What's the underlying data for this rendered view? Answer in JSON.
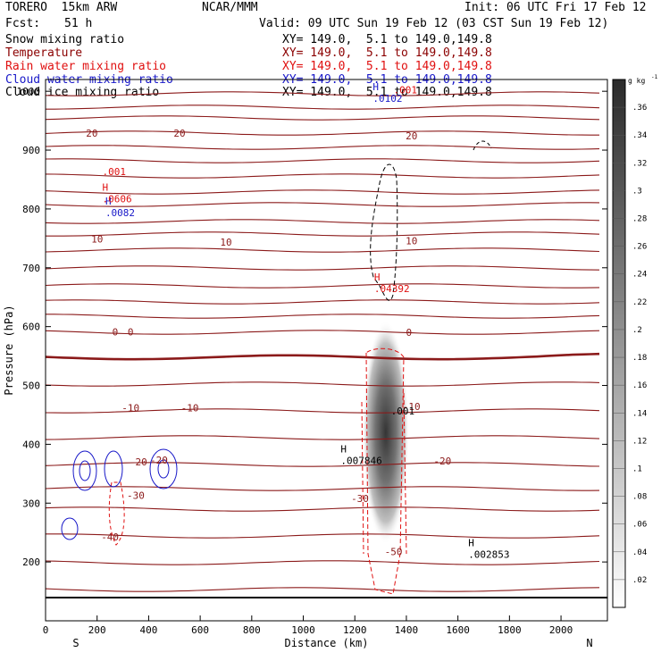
{
  "header": {
    "model": "TORERO  15km ARW",
    "org": "NCAR/MMM",
    "init": "Init: 06 UTC Fri 17 Feb 12",
    "fcst_label": "Fcst:",
    "fcst_value": "51 h",
    "valid": "Valid: 09 UTC Sun 19 Feb 12 (03 CST Sun 19 Feb 12)"
  },
  "legend": [
    {
      "name": "Snow mixing ratio",
      "xy": "XY= 149.0,  5.1 to 149.0,149.8",
      "color": "#000000"
    },
    {
      "name": "Temperature",
      "xy": "XY= 149.0,  5.1 to 149.0,149.8",
      "color": "#8b0000"
    },
    {
      "name": "Rain water mixing ratio",
      "xy": "XY= 149.0,  5.1 to 149.0,149.8",
      "color": "#e01010"
    },
    {
      "name": "Cloud water mixing ratio",
      "xy": "XY= 149.0,  5.1 to 149.0,149.8",
      "color": "#1818c8"
    },
    {
      "name": "Cloud ice mixing ratio",
      "xy": "XY= 149.0,  5.1 to 149.0,149.8",
      "color": "#000000"
    }
  ],
  "chart_data": {
    "type": "cross-section contour",
    "x_range": [
      0,
      2180
    ],
    "y_range": [
      1020,
      100
    ],
    "xlabel": "Distance (km)",
    "ylabel": "Pressure (hPa)",
    "x_ticks": [
      0,
      200,
      400,
      600,
      800,
      1000,
      1200,
      1400,
      1600,
      1800,
      2000
    ],
    "y_ticks": [
      200,
      300,
      400,
      500,
      600,
      700,
      800,
      900,
      1000
    ],
    "x_left_label": "S",
    "x_right_label": "N",
    "colorbar": {
      "unit": "g kg",
      "unit_exp": "-1",
      "ticks": [
        ".02",
        ".04",
        ".06",
        ".08",
        ".1",
        ".12",
        ".14",
        ".16",
        ".18",
        ".2",
        ".22",
        ".24",
        ".26",
        ".28",
        ".3",
        ".32",
        ".34",
        ".36"
      ]
    },
    "temperature_contours": [
      {
        "label": "-50",
        "label_x": 1350,
        "label_p": 218,
        "p": 218
      },
      {
        "label": "-40",
        "label_x": 250,
        "label_p": 243,
        "p": 243
      },
      {
        "label": "-30",
        "label_x": 350,
        "label_p": 313,
        "p": 313
      },
      {
        "label": "-30",
        "label_x": 1220,
        "label_p": 308,
        "p": 313
      },
      {
        "label": "-20",
        "label_x": 360,
        "label_p": 370,
        "p": 370
      },
      {
        "label": "-20",
        "label_x": 440,
        "label_p": 373,
        "p": 370
      },
      {
        "label": "-20",
        "label_x": 1540,
        "label_p": 372,
        "p": 370
      },
      {
        "label": "-10",
        "label_x": 330,
        "label_p": 462,
        "p": 462
      },
      {
        "label": "-10",
        "label_x": 560,
        "label_p": 462,
        "p": 462
      },
      {
        "label": "-10",
        "label_x": 1420,
        "label_p": 464,
        "p": 462
      },
      {
        "label": "0",
        "label_x": 270,
        "label_p": 591,
        "p": 591
      },
      {
        "label": "0",
        "label_x": 330,
        "label_p": 591,
        "p": 591
      },
      {
        "label": "0",
        "label_x": 1410,
        "label_p": 590,
        "p": 591
      },
      {
        "label": "10",
        "label_x": 200,
        "label_p": 749,
        "p": 749
      },
      {
        "label": "10",
        "label_x": 1420,
        "label_p": 746,
        "p": 749
      },
      {
        "label": "10",
        "label_x": 700,
        "label_p": 744,
        "p": 749
      },
      {
        "label": "20",
        "label_x": 180,
        "label_p": 929,
        "p": 929
      },
      {
        "label": "20",
        "label_x": 520,
        "label_p": 929,
        "p": 929
      },
      {
        "label": "20",
        "label_x": 1420,
        "label_p": 924,
        "p": 929
      }
    ],
    "annotations": [
      {
        "text": "H",
        "value": ".002853",
        "x": 1640,
        "p": 215,
        "color": "#000000"
      },
      {
        "text": "H",
        "value": ".007846",
        "x": 1145,
        "p": 374,
        "color": "#000000"
      },
      {
        "text": "",
        "value": ".001",
        "x": 1340,
        "p": 458,
        "color": "#000000"
      },
      {
        "text": "H",
        "value": ".04392",
        "x": 1275,
        "p": 666,
        "color": "#e01010"
      },
      {
        "text": "H",
        "value": ".0082",
        "x": 232,
        "p": 795,
        "color": "#1818c8"
      },
      {
        "text": "H",
        "value": ".0606",
        "x": 220,
        "p": 819,
        "color": "#e01010"
      },
      {
        "text": "",
        "value": ".001",
        "x": 220,
        "p": 865,
        "color": "#e01010"
      },
      {
        "text": "H",
        "value": ".0102",
        "x": 1270,
        "p": 990,
        "color": "#1818c8"
      },
      {
        "text": "",
        "value": ".001",
        "x": 1350,
        "p": 1004,
        "color": "#e01010"
      }
    ]
  }
}
